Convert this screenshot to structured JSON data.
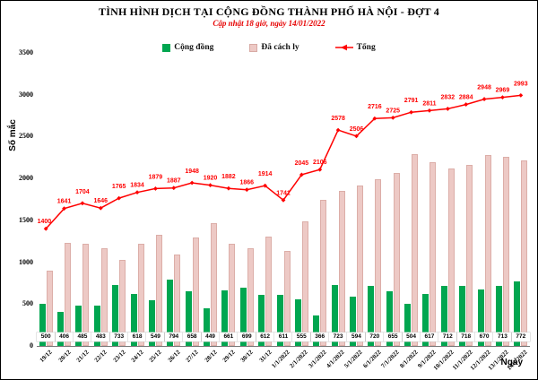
{
  "chart_data": {
    "type": "bar",
    "title": "TÌNH HÌNH DỊCH TẠI CỘNG ĐỒNG THÀNH PHỐ HÀ NỘI - ĐỢT 4",
    "subtitle": "Cập nhật 18 giờ, ngày 14/01/2022",
    "xlabel": "Ngày",
    "ylabel": "Số mắc",
    "ylim": [
      0,
      3500
    ],
    "yticks": [
      0,
      500,
      1000,
      1500,
      2000,
      2500,
      3000,
      3500
    ],
    "grid": false,
    "legend_position": "top",
    "categories": [
      "19/12",
      "20/12",
      "21/12",
      "22/12",
      "23/12",
      "24/12",
      "25/12",
      "26/12",
      "27/12",
      "28/12",
      "29/12",
      "30/12",
      "31/12",
      "1/1/2022",
      "2/1/2022",
      "3/1/2022",
      "4/1/2022",
      "5/1/2022",
      "6/1/2022",
      "7/1/2022",
      "8/1/2022",
      "9/1/2022",
      "10/1/2022",
      "11/1/2022",
      "12/1/2022",
      "13/1/2022",
      "14/1/2022"
    ],
    "series": [
      {
        "name": "Cộng đồng",
        "type": "bar",
        "color": "#00a650",
        "values": [
          500,
          406,
          485,
          483,
          733,
          618,
          549,
          794,
          658,
          449,
          661,
          699,
          612,
          611,
          555,
          366,
          723,
          594,
          720,
          655,
          504,
          617,
          712,
          718,
          670,
          713,
          772
        ],
        "labels_shown": true
      },
      {
        "name": "Đã cách ly",
        "type": "bar",
        "color": "#edc9c5",
        "values": [
          900,
          1235,
          1219,
          1163,
          1032,
          1216,
          1330,
          1093,
          1290,
          1471,
          1221,
          1167,
          1302,
          1130,
          1490,
          1740,
          1855,
          1912,
          1996,
          2070,
          2287,
          2194,
          2120,
          2166,
          2278,
          2256,
          2221
        ],
        "labels_shown": false
      },
      {
        "name": "Tổng",
        "type": "line",
        "color": "#ff0000",
        "values": [
          1400,
          1641,
          1704,
          1646,
          1765,
          1834,
          1879,
          1887,
          1948,
          1920,
          1882,
          1866,
          1914,
          1741,
          2045,
          2106,
          2578,
          2506,
          2716,
          2725,
          2791,
          2811,
          2832,
          2884,
          2948,
          2969,
          2993
        ],
        "labels_shown": true
      }
    ]
  }
}
